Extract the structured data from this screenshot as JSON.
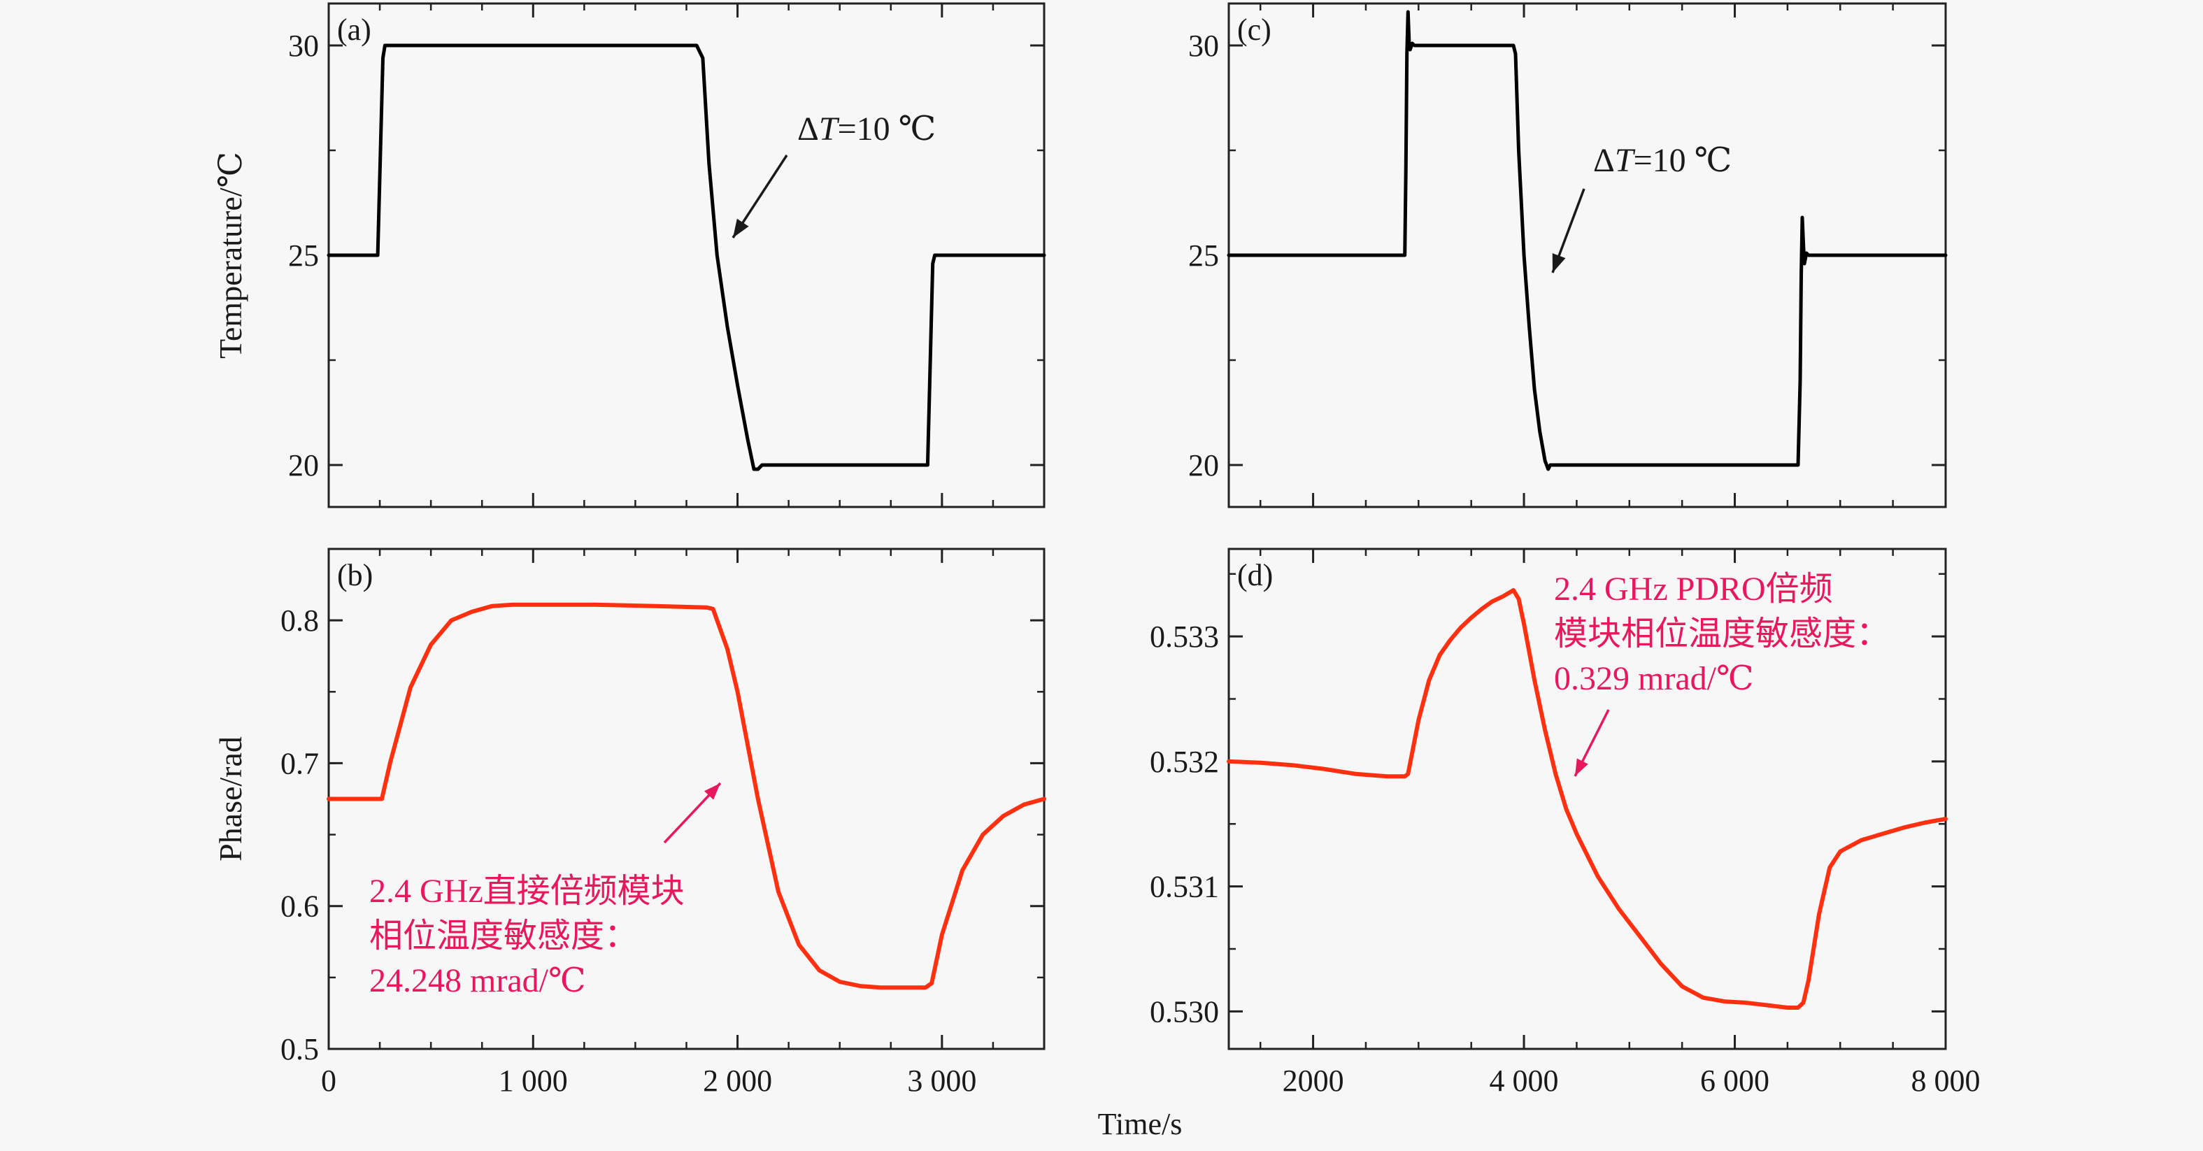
{
  "figure": {
    "shared_xlabel": "Time/s"
  },
  "chart_data": [
    {
      "id": "a",
      "type": "line",
      "panel_label": "(a)",
      "ylabel": "Temperature/℃",
      "xlim": [
        0,
        3500
      ],
      "ylim": [
        19,
        31
      ],
      "yticks": [
        20,
        25,
        30
      ],
      "ytick_labels": [
        "20",
        "25",
        "30"
      ],
      "xticks": [
        0,
        1000,
        2000,
        3000
      ],
      "xtick_labels": [],
      "annotation": {
        "text_prefix": "Δ",
        "text_italic": "T",
        "text_suffix": "=10 ℃"
      },
      "series": [
        {
          "color": "#000000",
          "x": [
            0,
            240,
            265,
            275,
            1800,
            1830,
            1860,
            1900,
            1950,
            2000,
            2050,
            2080,
            2100,
            2120,
            2930,
            2955,
            2965,
            3500
          ],
          "y": [
            25,
            25,
            29.7,
            30,
            30,
            29.7,
            27.2,
            25.0,
            23.3,
            21.9,
            20.6,
            19.9,
            19.9,
            20,
            20,
            24.8,
            25,
            25
          ]
        }
      ]
    },
    {
      "id": "b",
      "type": "line",
      "panel_label": "(b)",
      "ylabel": "Phase/rad",
      "xlabel": "",
      "xlim": [
        0,
        3500
      ],
      "ylim": [
        0.5,
        0.85
      ],
      "yticks": [
        0.5,
        0.6,
        0.7,
        0.8
      ],
      "ytick_labels": [
        "0.5",
        "0.6",
        "0.7",
        "0.8"
      ],
      "xticks": [
        0,
        1000,
        2000,
        3000
      ],
      "xtick_labels": [
        "0",
        "1 000",
        "2 000",
        "3 000"
      ],
      "annotation": {
        "lines": [
          "2.4 GHz直接倍频模块",
          "相位温度敏感度：",
          "24.248 mrad/℃"
        ]
      },
      "series": [
        {
          "color": "#ff3010",
          "x": [
            0,
            240,
            260,
            300,
            400,
            500,
            600,
            700,
            800,
            900,
            1000,
            1300,
            1600,
            1850,
            1880,
            1950,
            2000,
            2100,
            2200,
            2300,
            2400,
            2500,
            2600,
            2700,
            2800,
            2920,
            2950,
            3000,
            3100,
            3200,
            3300,
            3400,
            3500
          ],
          "y": [
            0.675,
            0.675,
            0.675,
            0.7,
            0.753,
            0.783,
            0.8,
            0.806,
            0.81,
            0.811,
            0.811,
            0.811,
            0.81,
            0.809,
            0.808,
            0.78,
            0.75,
            0.675,
            0.61,
            0.573,
            0.555,
            0.547,
            0.544,
            0.543,
            0.543,
            0.543,
            0.546,
            0.58,
            0.625,
            0.65,
            0.663,
            0.671,
            0.675
          ]
        }
      ]
    },
    {
      "id": "c",
      "type": "line",
      "panel_label": "(c)",
      "xlim": [
        1200,
        8000
      ],
      "ylim": [
        19,
        31
      ],
      "yticks": [
        20,
        25,
        30
      ],
      "ytick_labels": [
        "20",
        "25",
        "30"
      ],
      "xticks": [
        2000,
        4000,
        6000,
        8000
      ],
      "xtick_labels": [],
      "annotation": {
        "text_prefix": "Δ",
        "text_italic": "T",
        "text_suffix": "=10 ℃"
      },
      "series": [
        {
          "color": "#000000",
          "x": [
            1200,
            2870,
            2880,
            2890,
            2900,
            2910,
            2920,
            2940,
            2960,
            3000,
            3900,
            3920,
            3950,
            4000,
            4050,
            4100,
            4150,
            4200,
            4230,
            4250,
            4280,
            6600,
            6620,
            6630,
            6640,
            6650,
            6660,
            6680,
            6700,
            8000
          ],
          "y": [
            25,
            25,
            27,
            29.8,
            30.8,
            30.1,
            29.9,
            30.05,
            30,
            30,
            30,
            29.8,
            27.5,
            25,
            23.3,
            21.8,
            20.8,
            20.1,
            19.9,
            20,
            20,
            20,
            22,
            24.5,
            25.9,
            25.3,
            24.8,
            25.05,
            25,
            25
          ]
        }
      ]
    },
    {
      "id": "d",
      "type": "line",
      "panel_label": "(d)",
      "xlim": [
        1200,
        8000
      ],
      "ylim": [
        0.5297,
        0.5337
      ],
      "yticks": [
        0.53,
        0.531,
        0.532,
        0.533
      ],
      "ytick_labels": [
        "0.530",
        "0.531",
        "0.532",
        "0.533"
      ],
      "xticks": [
        2000,
        4000,
        6000,
        8000
      ],
      "xtick_labels": [
        "2000",
        "4 000",
        "6 000",
        "8 000"
      ],
      "annotation": {
        "lines": [
          "2.4 GHz PDRO倍频",
          "模块相位温度敏感度：",
          "0.329 mrad/℃"
        ]
      },
      "series": [
        {
          "color": "#ff3010",
          "x": [
            1200,
            1500,
            1800,
            2100,
            2400,
            2700,
            2870,
            2900,
            3000,
            3100,
            3200,
            3300,
            3400,
            3500,
            3600,
            3700,
            3800,
            3900,
            3950,
            4000,
            4100,
            4200,
            4300,
            4400,
            4500,
            4700,
            4900,
            5100,
            5300,
            5500,
            5700,
            5900,
            6100,
            6300,
            6500,
            6600,
            6650,
            6700,
            6800,
            6900,
            7000,
            7200,
            7400,
            7600,
            7800,
            8000
          ],
          "y": [
            0.532,
            0.53199,
            0.53197,
            0.53194,
            0.5319,
            0.53188,
            0.53188,
            0.5319,
            0.53233,
            0.53265,
            0.53285,
            0.53297,
            0.53307,
            0.53315,
            0.53322,
            0.53328,
            0.53332,
            0.53337,
            0.5333,
            0.5331,
            0.53265,
            0.53225,
            0.5319,
            0.53162,
            0.53142,
            0.53108,
            0.53082,
            0.5306,
            0.53038,
            0.5302,
            0.53011,
            0.53008,
            0.53007,
            0.53005,
            0.53003,
            0.53003,
            0.53007,
            0.53025,
            0.53078,
            0.53115,
            0.53128,
            0.53137,
            0.53142,
            0.53147,
            0.53151,
            0.53154
          ]
        }
      ]
    }
  ]
}
